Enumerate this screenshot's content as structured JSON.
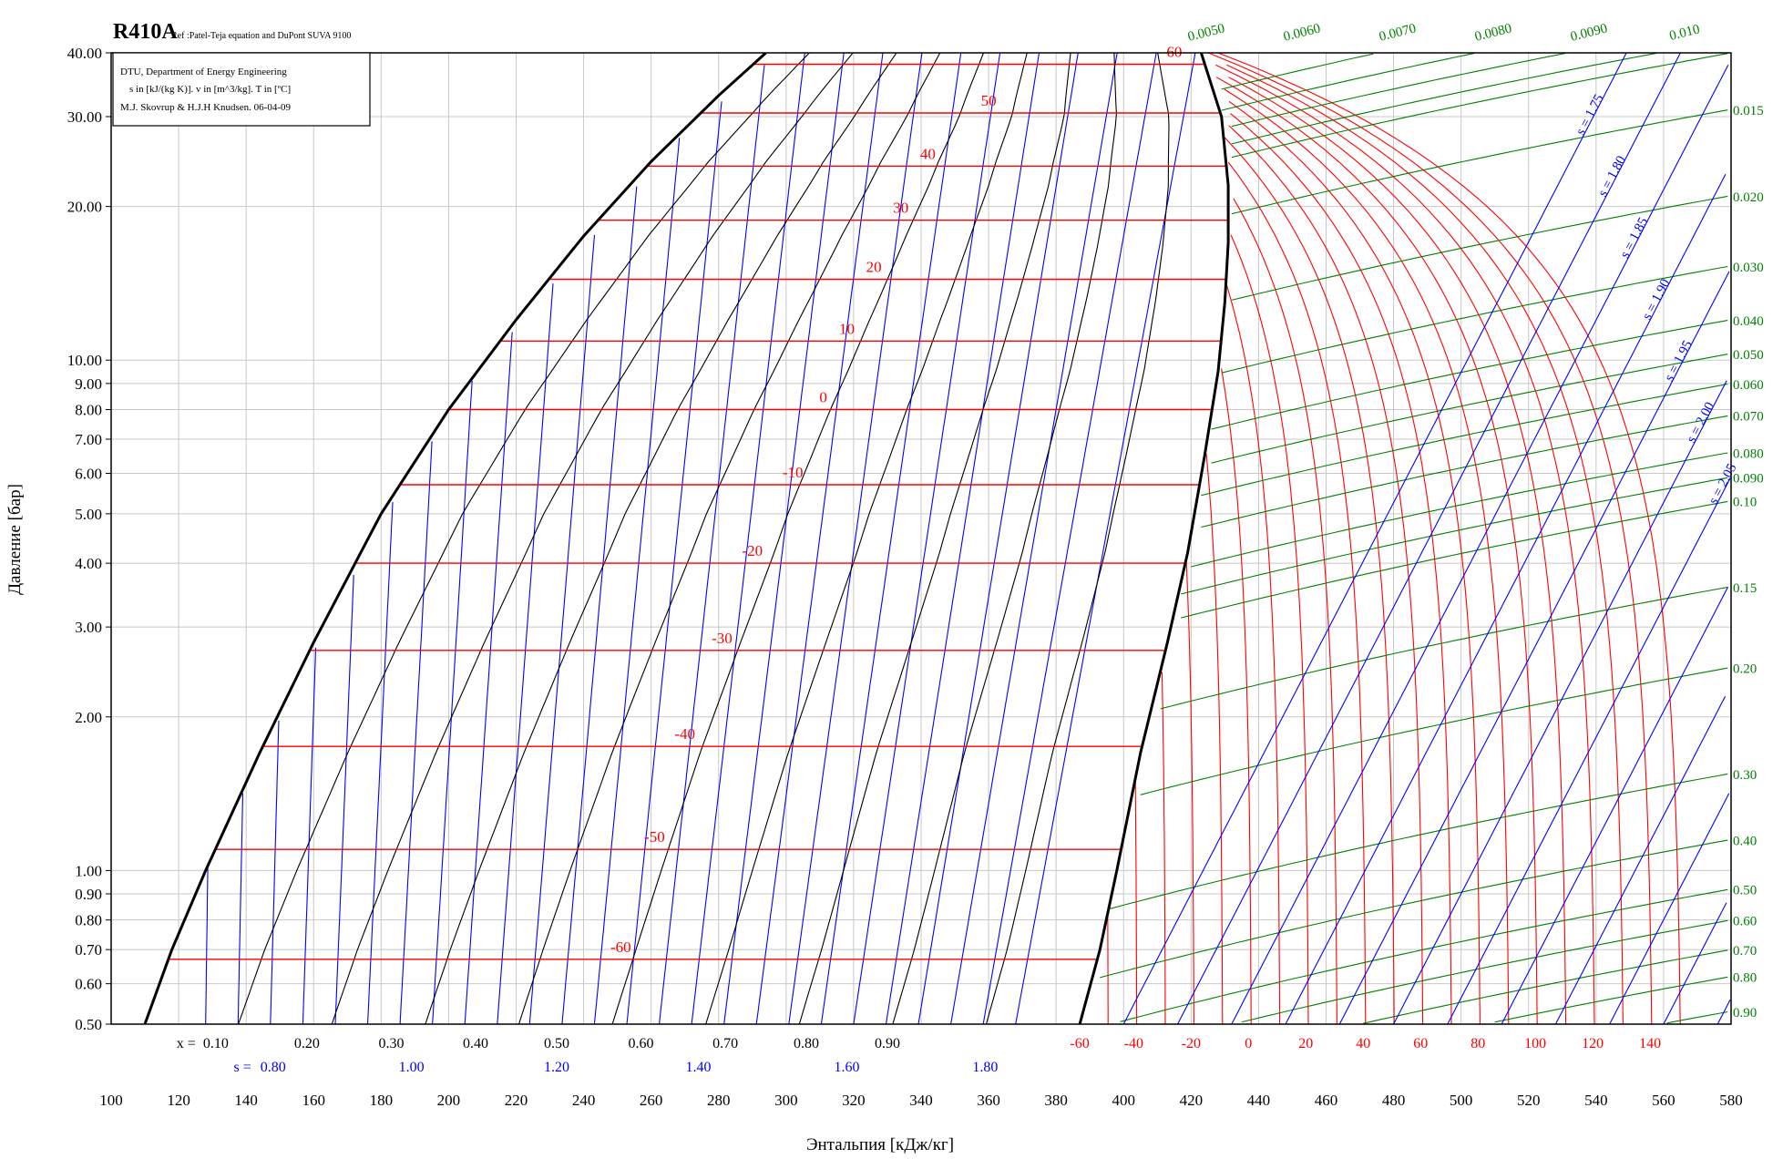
{
  "chart_data": {
    "type": "line",
    "title": "R410A",
    "subtitle": "Ref :Patel-Teja equation and DuPont SUVA 9100",
    "info_box": [
      "DTU, Department of Energy Engineering",
      "s in [kJ/(kg K)]. v in [m^3/kg]. T in [ºC]",
      "M.J. Skovrup & H.J.H Knudsen. 06-04-09"
    ],
    "xlabel": "Энтальпия [кДж/кг]",
    "ylabel": "Давление [бар]",
    "xlim": [
      100,
      580
    ],
    "ylim": [
      0.5,
      40
    ],
    "y_scale": "log",
    "grid": true,
    "x_ticks": [
      100,
      120,
      140,
      160,
      180,
      200,
      220,
      240,
      260,
      280,
      300,
      320,
      340,
      360,
      380,
      400,
      420,
      440,
      460,
      480,
      500,
      520,
      540,
      560,
      580
    ],
    "y_ticks": [
      {
        "value": 0.5,
        "label": "0.50"
      },
      {
        "value": 0.6,
        "label": "0.60"
      },
      {
        "value": 0.7,
        "label": "0.70"
      },
      {
        "value": 0.8,
        "label": "0.80"
      },
      {
        "value": 0.9,
        "label": "0.90"
      },
      {
        "value": 1.0,
        "label": "1.00"
      },
      {
        "value": 2.0,
        "label": "2.00"
      },
      {
        "value": 3.0,
        "label": "3.00"
      },
      {
        "value": 4.0,
        "label": "4.00"
      },
      {
        "value": 5.0,
        "label": "5.00"
      },
      {
        "value": 6.0,
        "label": "6.00"
      },
      {
        "value": 7.0,
        "label": "7.00"
      },
      {
        "value": 8.0,
        "label": "8.00"
      },
      {
        "value": 9.0,
        "label": "9.00"
      },
      {
        "value": 10.0,
        "label": "10.00"
      },
      {
        "value": 20.0,
        "label": "20.00"
      },
      {
        "value": 30.0,
        "label": "30.00"
      },
      {
        "value": 40.0,
        "label": "40.00"
      }
    ],
    "quality_scale": {
      "prefix": "x = ",
      "labels": [
        "0.10",
        "0.20",
        "0.30",
        "0.40",
        "0.50",
        "0.60",
        "0.70",
        "0.80",
        "0.90"
      ],
      "x": [
        131,
        158,
        183,
        208,
        232,
        257,
        282,
        306,
        330
      ]
    },
    "entropy_scale": {
      "prefix": "s = ",
      "labels": [
        "0.80",
        "1.00",
        "1.20",
        "1.40",
        "1.60",
        "1.80"
      ],
      "x": [
        148,
        189,
        232,
        274,
        318,
        359
      ]
    },
    "temperature_scale": {
      "labels": [
        "-60",
        "-40",
        "-20",
        "0",
        "20",
        "40",
        "60",
        "80",
        "100",
        "120",
        "140"
      ],
      "x": [
        387,
        403,
        420,
        437,
        454,
        471,
        488,
        505,
        522,
        539,
        556
      ]
    },
    "saturation_dome": {
      "liquid": [
        [
          110,
          0.5
        ],
        [
          118,
          0.7
        ],
        [
          128,
          1.0
        ],
        [
          144,
          1.7
        ],
        [
          160,
          2.8
        ],
        [
          180,
          5.0
        ],
        [
          200,
          8.0
        ],
        [
          220,
          12.0
        ],
        [
          240,
          17.5
        ],
        [
          260,
          24.5
        ],
        [
          280,
          33.0
        ],
        [
          294,
          40.0
        ]
      ],
      "vapor": [
        [
          387,
          0.5
        ],
        [
          393,
          0.7
        ],
        [
          398,
          1.0
        ],
        [
          405,
          1.7
        ],
        [
          413,
          2.8
        ],
        [
          419,
          4.2
        ],
        [
          424,
          6.5
        ],
        [
          428,
          9.5
        ],
        [
          430,
          13
        ],
        [
          431,
          17
        ],
        [
          431,
          22
        ],
        [
          429,
          30
        ],
        [
          423,
          40
        ]
      ]
    },
    "saturation_temperatures": [
      {
        "t": "60",
        "p": 38.0,
        "label_h": 415
      },
      {
        "t": "50",
        "p": 30.5,
        "label_h": 360
      },
      {
        "t": "40",
        "p": 24.0,
        "label_h": 342
      },
      {
        "t": "30",
        "p": 18.8,
        "label_h": 334
      },
      {
        "t": "20",
        "p": 14.4,
        "label_h": 326
      },
      {
        "t": "10",
        "p": 10.9,
        "label_h": 318
      },
      {
        "t": "0",
        "p": 8.0,
        "label_h": 311
      },
      {
        "t": "-10",
        "p": 5.7,
        "label_h": 302
      },
      {
        "t": "-20",
        "p": 4.0,
        "label_h": 290
      },
      {
        "t": "-30",
        "p": 2.7,
        "label_h": 281
      },
      {
        "t": "-40",
        "p": 1.75,
        "label_h": 270
      },
      {
        "t": "-50",
        "p": 1.1,
        "label_h": 261
      },
      {
        "t": "-60",
        "p": 0.67,
        "label_h": 251
      }
    ],
    "vapor_isotherms_t": [
      -60,
      -50,
      -40,
      -30,
      -20,
      -10,
      0,
      10,
      20,
      30,
      40,
      50,
      60,
      70,
      80,
      90,
      100,
      110,
      120,
      130,
      140,
      150
    ],
    "isentropes": {
      "values": [
        "1.75",
        "1.80",
        "1.85",
        "1.90",
        "1.95",
        "2.00",
        "2.05",
        "2.10",
        "2.15",
        "2.20",
        "2.25",
        "2.30",
        "2.35",
        "2.40",
        "2.45",
        "2.50"
      ],
      "label_prefix": "s = "
    },
    "isochores": {
      "top_labels": [
        "0.0050",
        "0.0060",
        "0.0070",
        "0.0080",
        "0.0090",
        "0.010"
      ],
      "right_labels": [
        "0.015",
        "0.020",
        "0.030",
        "0.040",
        "0.050",
        "0.060",
        "0.070",
        "0.080",
        "0.090",
        "0.10",
        "0.15",
        "0.20",
        "0.30",
        "0.40",
        "0.50",
        "0.60",
        "0.70",
        "0.80",
        "0.90"
      ],
      "right_p": [
        31,
        21,
        15.3,
        12,
        10.3,
        9.0,
        7.8,
        6.6,
        5.9,
        5.3,
        3.6,
        2.5,
        1.55,
        1.15,
        0.92,
        0.8,
        0.7,
        0.62,
        0.53
      ]
    },
    "colors": {
      "isotherm": "#ff0000",
      "isentrope": "#0000ff",
      "isochore": "#008000",
      "quality": "#000000",
      "dome": "#000000",
      "grid": "#c8c8c8"
    }
  }
}
